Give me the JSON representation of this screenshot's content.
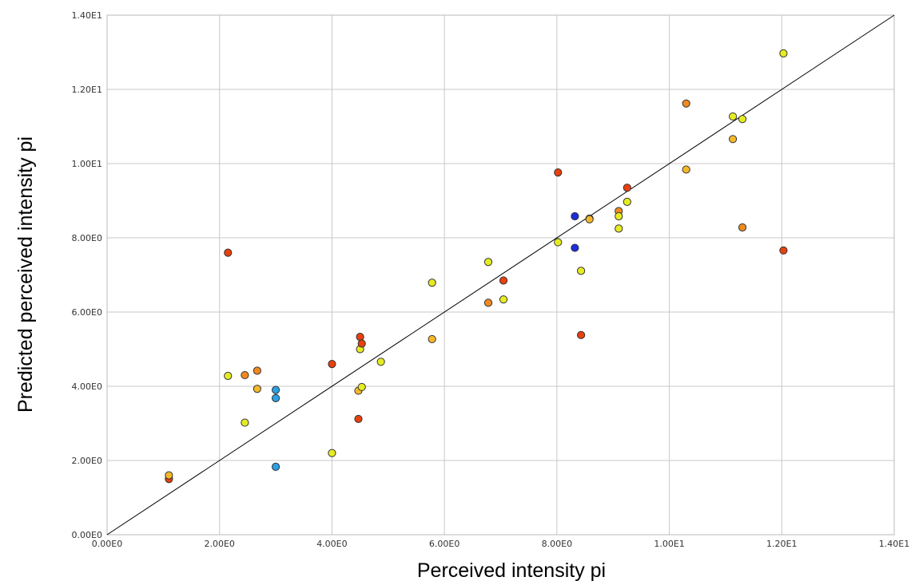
{
  "chart_data": {
    "type": "scatter",
    "xlabel": "Perceived intensity pi",
    "ylabel": "Predicted perceived intensity pi",
    "xlim": [
      0,
      14
    ],
    "ylim": [
      0,
      14
    ],
    "x_ticks": [
      0,
      2,
      4,
      6,
      8,
      10,
      12,
      14
    ],
    "y_ticks": [
      0,
      2,
      4,
      6,
      8,
      10,
      12,
      14
    ],
    "x_tick_labels": [
      "0.00E0",
      "2.00E0",
      "4.00E0",
      "6.00E0",
      "8.00E0",
      "1.00E1",
      "1.20E1",
      "1.40E1"
    ],
    "y_tick_labels": [
      "0.00E0",
      "2.00E0",
      "4.00E0",
      "6.00E0",
      "8.00E0",
      "1.00E1",
      "1.20E1",
      "1.40E1"
    ],
    "grid": true,
    "reference_line": {
      "from": [
        0,
        0
      ],
      "to": [
        14,
        14
      ],
      "color": "#000000"
    },
    "point_colors": {
      "red": "#e8400e",
      "orange": "#f08a20",
      "amber": "#f5b82a",
      "yellow": "#e6ec22",
      "light_blue": "#2aa0e6",
      "blue": "#1c2fdc"
    },
    "points": [
      {
        "x": 1.1,
        "y": 1.5,
        "color": "red"
      },
      {
        "x": 1.1,
        "y": 1.6,
        "color": "amber"
      },
      {
        "x": 2.15,
        "y": 7.6,
        "color": "red"
      },
      {
        "x": 2.15,
        "y": 4.28,
        "color": "yellow"
      },
      {
        "x": 2.45,
        "y": 4.3,
        "color": "orange"
      },
      {
        "x": 2.45,
        "y": 3.02,
        "color": "yellow"
      },
      {
        "x": 2.67,
        "y": 4.42,
        "color": "orange"
      },
      {
        "x": 2.67,
        "y": 3.93,
        "color": "amber"
      },
      {
        "x": 3.0,
        "y": 3.9,
        "color": "light_blue"
      },
      {
        "x": 3.0,
        "y": 3.68,
        "color": "light_blue"
      },
      {
        "x": 3.0,
        "y": 1.83,
        "color": "light_blue"
      },
      {
        "x": 4.0,
        "y": 4.6,
        "color": "red"
      },
      {
        "x": 4.0,
        "y": 2.2,
        "color": "yellow"
      },
      {
        "x": 4.47,
        "y": 3.88,
        "color": "amber"
      },
      {
        "x": 4.47,
        "y": 3.12,
        "color": "red"
      },
      {
        "x": 4.5,
        "y": 5.33,
        "color": "red"
      },
      {
        "x": 4.5,
        "y": 5.0,
        "color": "yellow"
      },
      {
        "x": 4.53,
        "y": 5.15,
        "color": "red"
      },
      {
        "x": 4.53,
        "y": 3.98,
        "color": "yellow"
      },
      {
        "x": 4.87,
        "y": 4.66,
        "color": "yellow"
      },
      {
        "x": 5.78,
        "y": 6.79,
        "color": "yellow"
      },
      {
        "x": 5.78,
        "y": 5.27,
        "color": "amber"
      },
      {
        "x": 6.78,
        "y": 7.35,
        "color": "yellow"
      },
      {
        "x": 6.78,
        "y": 6.25,
        "color": "orange"
      },
      {
        "x": 7.05,
        "y": 6.85,
        "color": "red"
      },
      {
        "x": 7.05,
        "y": 6.34,
        "color": "yellow"
      },
      {
        "x": 8.02,
        "y": 9.76,
        "color": "red"
      },
      {
        "x": 8.02,
        "y": 7.88,
        "color": "yellow"
      },
      {
        "x": 8.32,
        "y": 8.58,
        "color": "blue"
      },
      {
        "x": 8.32,
        "y": 7.73,
        "color": "blue"
      },
      {
        "x": 8.43,
        "y": 7.11,
        "color": "yellow"
      },
      {
        "x": 8.43,
        "y": 5.38,
        "color": "red"
      },
      {
        "x": 8.58,
        "y": 8.52,
        "color": "yellow"
      },
      {
        "x": 8.58,
        "y": 8.5,
        "color": "amber"
      },
      {
        "x": 9.1,
        "y": 8.72,
        "color": "orange"
      },
      {
        "x": 9.1,
        "y": 8.58,
        "color": "yellow"
      },
      {
        "x": 9.1,
        "y": 8.25,
        "color": "yellow"
      },
      {
        "x": 9.25,
        "y": 9.35,
        "color": "red"
      },
      {
        "x": 9.25,
        "y": 8.97,
        "color": "yellow"
      },
      {
        "x": 10.3,
        "y": 11.62,
        "color": "orange"
      },
      {
        "x": 10.3,
        "y": 9.84,
        "color": "amber"
      },
      {
        "x": 11.13,
        "y": 11.27,
        "color": "yellow"
      },
      {
        "x": 11.13,
        "y": 10.66,
        "color": "amber"
      },
      {
        "x": 11.3,
        "y": 11.2,
        "color": "yellow"
      },
      {
        "x": 11.3,
        "y": 8.28,
        "color": "orange"
      },
      {
        "x": 12.03,
        "y": 12.97,
        "color": "yellow"
      },
      {
        "x": 12.03,
        "y": 7.66,
        "color": "red"
      }
    ]
  }
}
